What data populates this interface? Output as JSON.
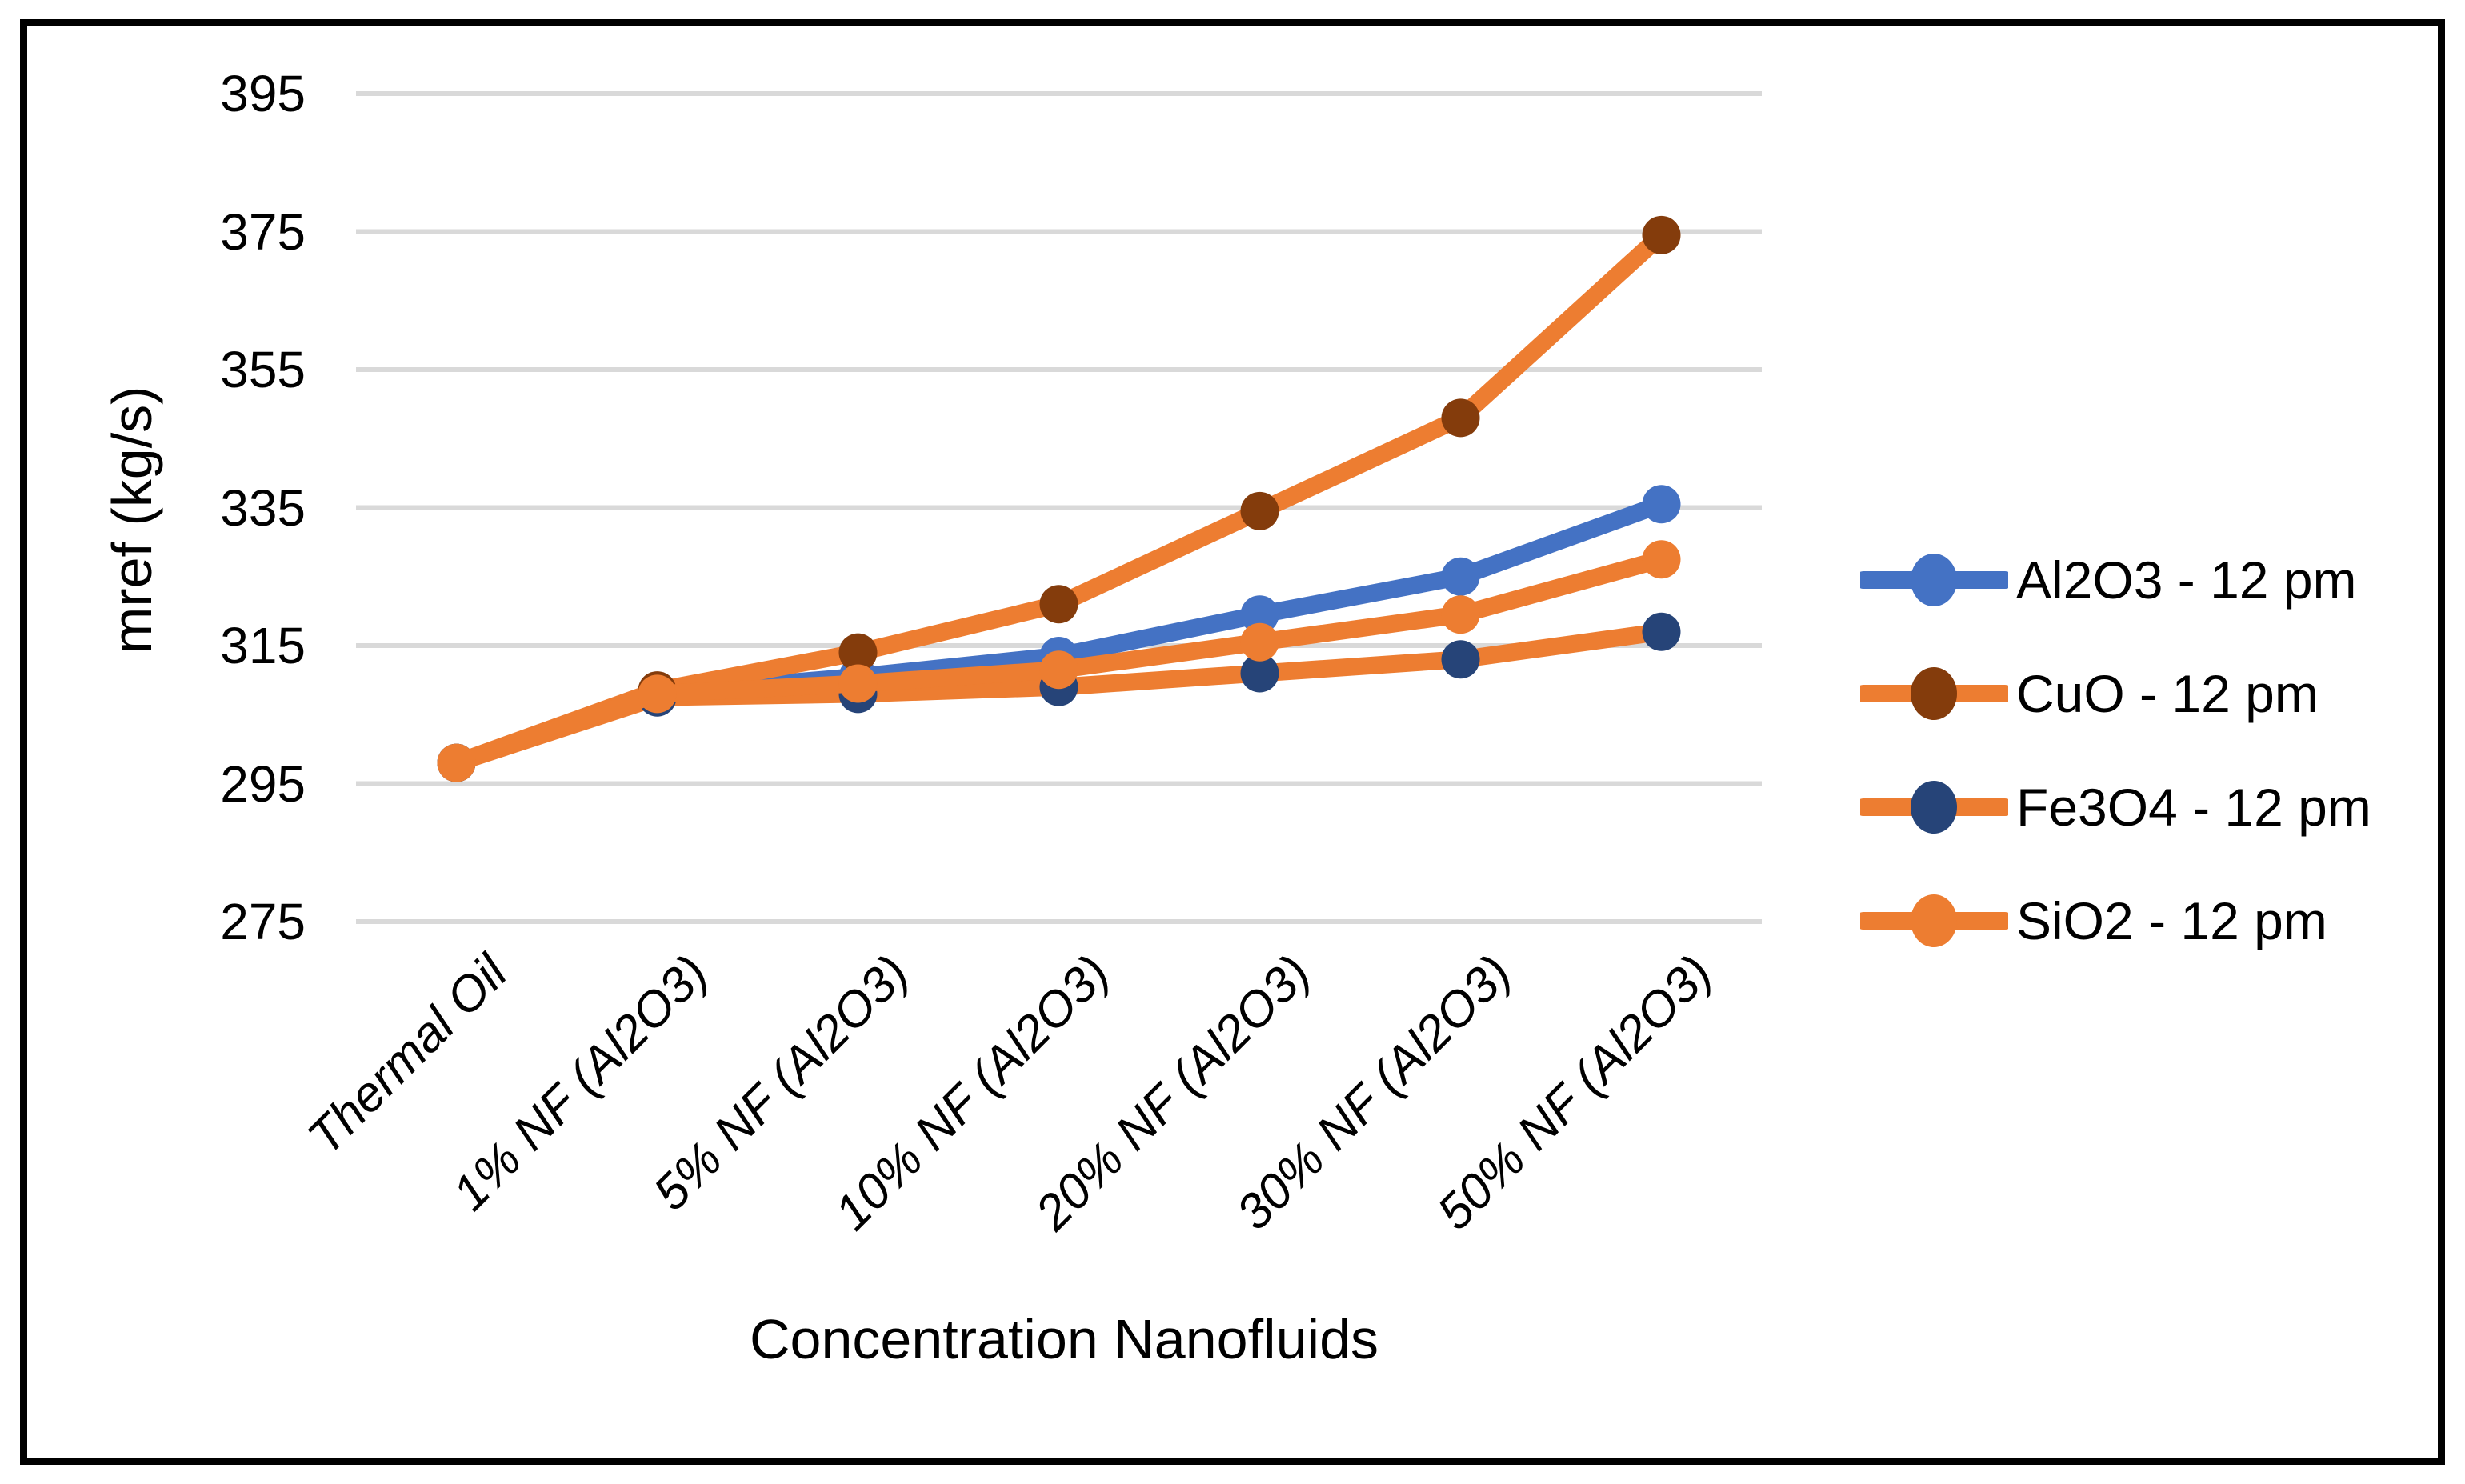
{
  "figure": {
    "background_color": "#ffffff",
    "border_color": "#000000"
  },
  "chart_data": {
    "type": "line",
    "title": "",
    "xlabel": "Concentration Nanofluids",
    "ylabel": "mref (kg/s)",
    "ylim": [
      275,
      395
    ],
    "yticks": [
      395,
      375,
      355,
      335,
      315,
      295,
      275
    ],
    "grid": true,
    "grid_color": "#D9D9D9",
    "legend_position": "right",
    "categories": [
      "Thermal Oil",
      "1% NF (Al2O3)",
      "5% NF (Al2O3)",
      "10% NF (Al2O3)",
      "20% NF (Al2O3)",
      "30% NF (Al2O3)",
      "50% NF (Al2O3)"
    ],
    "series": [
      {
        "name": "Al2O3 - 12 pm",
        "line_color": "#4472C4",
        "marker_color": "#4472C4",
        "values": [
          298,
          308,
          310.5,
          313.5,
          319.5,
          325,
          335.5
        ]
      },
      {
        "name": "CuO - 12 pm",
        "line_color": "#ED7D31",
        "marker_color": "#843C0C",
        "values": [
          298,
          308.5,
          314,
          321,
          334.5,
          348,
          374.5
        ]
      },
      {
        "name": "Fe3O4 - 12 pm",
        "line_color": "#ED7D31",
        "marker_color": "#264478",
        "values": [
          298,
          307.5,
          308,
          309,
          311,
          313,
          317
        ]
      },
      {
        "name": "SiO2 - 12 pm",
        "line_color": "#ED7D31",
        "marker_color": "#ED7D31",
        "values": [
          298,
          308,
          309.5,
          311.5,
          315.5,
          319.5,
          327.5
        ]
      }
    ]
  }
}
